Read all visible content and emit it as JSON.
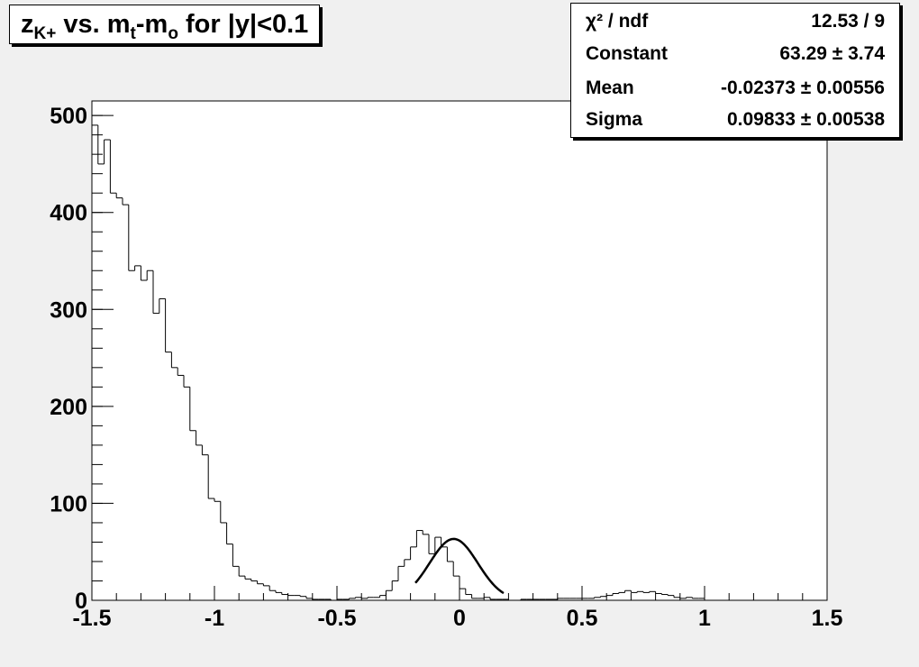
{
  "title": {
    "parts": [
      "z",
      "K+",
      " vs. m",
      "t",
      "-m",
      "o",
      " for |y|<0.1"
    ]
  },
  "stats": {
    "rows": [
      {
        "label": "χ² / ndf",
        "value": "12.53 / 9"
      },
      {
        "label": "Constant",
        "value": "63.29 ± 3.74"
      },
      {
        "label": "Mean",
        "value": "-0.02373 ± 0.00556"
      },
      {
        "label": "Sigma",
        "value": "0.09833 ± 0.00538"
      }
    ]
  },
  "colors": {
    "background": "#f0f0f0",
    "frame": "#ffffff",
    "line": "#000000"
  },
  "chart_data": {
    "type": "histogram",
    "xlim": [
      -1.5,
      1.5
    ],
    "ylim": [
      0,
      515
    ],
    "x_ticks": [
      "-1.5",
      "-1",
      "-0.5",
      "0",
      "0.5",
      "1",
      "1.5"
    ],
    "y_ticks": [
      "0",
      "100",
      "200",
      "300",
      "400",
      "500"
    ],
    "bin_width": 0.025,
    "bin_low_edge": -1.5,
    "values": [
      490,
      450,
      475,
      420,
      415,
      408,
      340,
      345,
      330,
      340,
      296,
      311,
      256,
      240,
      232,
      220,
      175,
      160,
      150,
      105,
      102,
      80,
      58,
      35,
      25,
      22,
      20,
      17,
      15,
      10,
      8,
      6,
      5,
      5,
      4,
      2,
      1,
      1,
      1,
      0,
      1,
      1,
      2,
      3,
      2,
      3,
      3,
      5,
      10,
      20,
      35,
      42,
      55,
      72,
      68,
      48,
      65,
      55,
      40,
      25,
      12,
      6,
      2,
      2,
      3,
      1,
      1,
      1,
      0,
      0,
      1,
      1,
      1,
      1,
      1,
      1,
      2,
      2,
      2,
      2,
      2,
      2,
      3,
      4,
      5,
      7,
      8,
      10,
      8,
      9,
      8,
      9,
      7,
      6,
      5,
      3,
      2,
      3,
      2,
      2
    ],
    "fit": {
      "function": "gaus",
      "constant": 63.29,
      "mean": -0.02373,
      "sigma": 0.09833,
      "range": [
        -0.18,
        0.18
      ]
    }
  }
}
